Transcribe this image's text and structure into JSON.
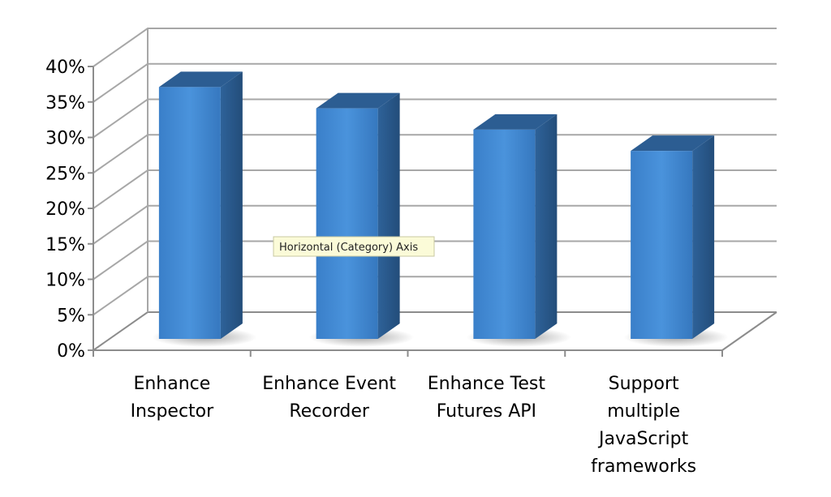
{
  "chart_data": {
    "type": "bar",
    "title": "",
    "xlabel": "",
    "ylabel": "",
    "categories": [
      "Enhance Inspector",
      "Enhance Event Recorder",
      "Enhance Test Futures API",
      "Support multiple JavaScript frameworks"
    ],
    "category_label_lines": [
      [
        "Enhance",
        "Inspector"
      ],
      [
        "Enhance Event",
        "Recorder"
      ],
      [
        "Enhance Test",
        "Futures API"
      ],
      [
        "Support",
        "multiple",
        "JavaScript",
        "frameworks"
      ]
    ],
    "values": [
      0.355,
      0.325,
      0.295,
      0.265
    ],
    "ylim": [
      0,
      0.4
    ],
    "yticks": [
      0,
      0.05,
      0.1,
      0.15,
      0.2,
      0.25,
      0.3,
      0.35,
      0.4
    ],
    "ytick_labels": [
      "0%",
      "5%",
      "10%",
      "15%",
      "20%",
      "25%",
      "30%",
      "35%",
      "40%"
    ],
    "grid": true,
    "legend": "none",
    "style": "3d-columns",
    "colors": {
      "bar_front": "#3f86cf",
      "bar_side": "#2c5d92",
      "bar_top": "#4b8fd4",
      "grid": "#a7a7a7",
      "axis": "#8c8c8c"
    },
    "tooltip": {
      "text": "Horizontal (Category) Axis"
    }
  }
}
